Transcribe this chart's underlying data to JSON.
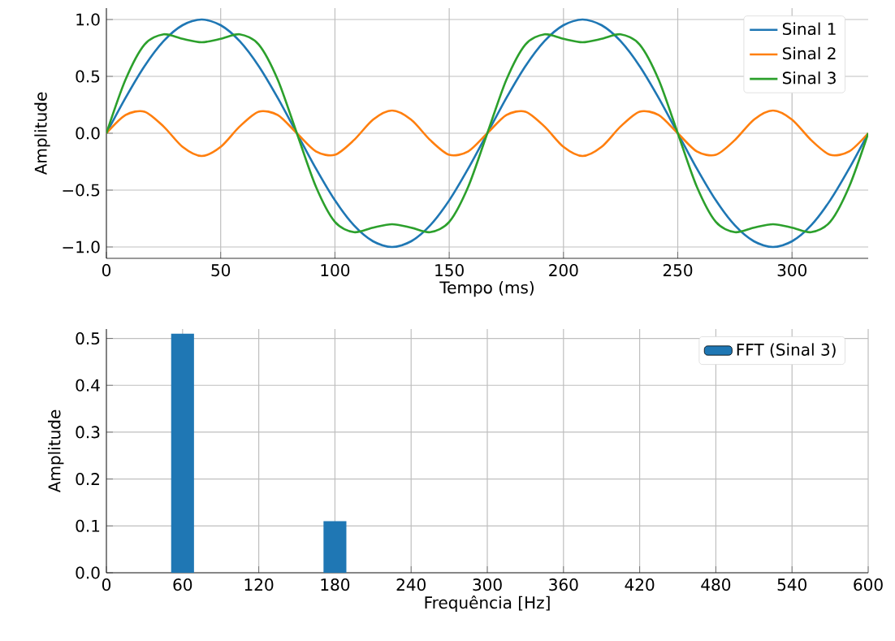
{
  "chart_data": [
    {
      "type": "line",
      "xlabel": "Tempo (ms)",
      "ylabel": "Amplitude",
      "x": [
        0,
        8.33,
        16.67,
        25,
        33.33,
        41.67,
        50,
        58.33,
        66.67,
        75,
        83.33,
        91.67,
        100,
        108.33,
        116.67,
        125,
        133.33,
        141.67,
        150,
        158.33,
        166.67,
        175,
        183.33,
        191.67,
        200,
        208.33,
        216.67,
        225,
        233.33,
        241.67,
        250,
        258.33,
        266.67,
        275,
        283.33,
        291.67,
        300,
        308.33,
        316.67,
        325,
        333.33
      ],
      "series": [
        {
          "name": "Sinal 1",
          "color": "#1f77b4",
          "values": [
            0,
            0.31,
            0.59,
            0.81,
            0.95,
            1,
            0.95,
            0.81,
            0.59,
            0.31,
            0,
            -0.31,
            -0.59,
            -0.81,
            -0.95,
            -1,
            -0.95,
            -0.81,
            -0.59,
            -0.31,
            0,
            0.31,
            0.59,
            0.81,
            0.95,
            1,
            0.95,
            0.81,
            0.59,
            0.31,
            0,
            -0.31,
            -0.59,
            -0.81,
            -0.95,
            -1,
            -0.95,
            -0.81,
            -0.59,
            -0.31,
            0
          ]
        },
        {
          "name": "Sinal 2",
          "color": "#ff7f0e",
          "values": [
            0,
            0.16,
            0.19,
            0.06,
            -0.12,
            -0.2,
            -0.12,
            0.06,
            0.19,
            0.16,
            0,
            -0.16,
            -0.19,
            -0.06,
            0.12,
            0.2,
            0.12,
            -0.06,
            -0.19,
            -0.16,
            0,
            0.16,
            0.19,
            0.06,
            -0.12,
            -0.2,
            -0.12,
            0.06,
            0.19,
            0.16,
            0,
            -0.16,
            -0.19,
            -0.06,
            0.12,
            0.2,
            0.12,
            -0.06,
            -0.19,
            -0.16,
            0
          ]
        },
        {
          "name": "Sinal 3",
          "color": "#2ca02c",
          "values": [
            0,
            0.47,
            0.78,
            0.87,
            0.83,
            0.8,
            0.83,
            0.87,
            0.78,
            0.47,
            0,
            -0.47,
            -0.78,
            -0.87,
            -0.83,
            -0.8,
            -0.83,
            -0.87,
            -0.78,
            -0.47,
            0,
            0.47,
            0.78,
            0.87,
            0.83,
            0.8,
            0.83,
            0.87,
            0.78,
            0.47,
            0,
            -0.47,
            -0.78,
            -0.87,
            -0.83,
            -0.8,
            -0.83,
            -0.87,
            -0.78,
            -0.47,
            0
          ]
        }
      ],
      "xlim": [
        0,
        333.33
      ],
      "ylim": [
        -1.1,
        1.1
      ],
      "xticks": [
        0,
        50,
        100,
        150,
        200,
        250,
        300
      ],
      "yticks": [
        {
          "value": -1,
          "label": "−1.0"
        },
        {
          "value": -0.5,
          "label": "−0.5"
        },
        {
          "value": 0,
          "label": "0.0"
        },
        {
          "value": 0.5,
          "label": "0.5"
        },
        {
          "value": 1,
          "label": "1.0"
        }
      ],
      "grid": true,
      "legend": "top right"
    },
    {
      "type": "bar",
      "xlabel": "Frequência [Hz]",
      "ylabel": "Amplitude",
      "x": [
        60,
        180
      ],
      "series": [
        {
          "name": "FFT (Sinal 3)",
          "color": "#1f77b4",
          "values": [
            0.51,
            0.11
          ]
        }
      ],
      "xlim": [
        0,
        600
      ],
      "ylim": [
        0,
        0.52
      ],
      "xticks": [
        0,
        60,
        120,
        180,
        240,
        300,
        360,
        420,
        480,
        540,
        600
      ],
      "yticks": [
        {
          "value": 0,
          "label": "0.0"
        },
        {
          "value": 0.1,
          "label": "0.1"
        },
        {
          "value": 0.2,
          "label": "0.2"
        },
        {
          "value": 0.3,
          "label": "0.3"
        },
        {
          "value": 0.4,
          "label": "0.4"
        },
        {
          "value": 0.5,
          "label": "0.5"
        }
      ],
      "grid": true,
      "legend": "top right"
    }
  ]
}
